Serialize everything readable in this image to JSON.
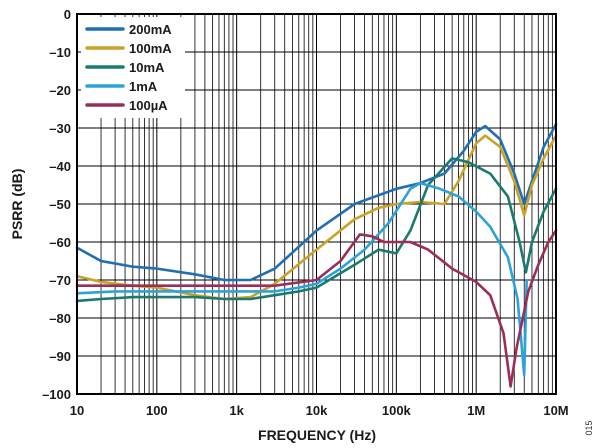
{
  "chart_data": {
    "type": "line",
    "xlabel": "FREQUENCY (Hz)",
    "ylabel": "PSRR (dB)",
    "xscale": "log",
    "xlim": [
      10,
      10000000
    ],
    "ylim": [
      -100,
      0
    ],
    "xticks": [
      10,
      100,
      1000,
      10000,
      100000,
      1000000,
      10000000
    ],
    "xtick_labels": [
      "10",
      "100",
      "1k",
      "10k",
      "100k",
      "1M",
      "10M"
    ],
    "yticks": [
      0,
      -10,
      -20,
      -30,
      -40,
      -50,
      -60,
      -70,
      -80,
      -90,
      -100
    ],
    "ytick_labels": [
      "0",
      "–10",
      "–20",
      "–30",
      "–40",
      "–50",
      "–60",
      "–70",
      "–80",
      "–90",
      "–100"
    ],
    "grid": true,
    "legend_position": "top-left",
    "side_code": "015",
    "series": [
      {
        "name": "200mA",
        "color": "#1f6fb2",
        "points": [
          [
            10,
            -61.5
          ],
          [
            20,
            -65
          ],
          [
            50,
            -66.5
          ],
          [
            100,
            -67
          ],
          [
            300,
            -68.5
          ],
          [
            700,
            -70
          ],
          [
            1500,
            -70
          ],
          [
            3000,
            -67
          ],
          [
            10000,
            -57
          ],
          [
            30000,
            -50
          ],
          [
            100000,
            -46
          ],
          [
            200000,
            -44.5
          ],
          [
            400000,
            -42
          ],
          [
            700000,
            -36
          ],
          [
            1000000,
            -31
          ],
          [
            1300000,
            -29.5
          ],
          [
            2000000,
            -33
          ],
          [
            3000000,
            -42
          ],
          [
            4000000,
            -50
          ],
          [
            5000000,
            -44
          ],
          [
            7000000,
            -35
          ],
          [
            10000000,
            -29
          ]
        ]
      },
      {
        "name": "100mA",
        "color": "#c9a227",
        "points": [
          [
            10,
            -69
          ],
          [
            20,
            -70.5
          ],
          [
            50,
            -71.5
          ],
          [
            100,
            -72
          ],
          [
            300,
            -74
          ],
          [
            700,
            -75
          ],
          [
            1500,
            -74.5
          ],
          [
            3000,
            -71
          ],
          [
            10000,
            -62
          ],
          [
            30000,
            -54
          ],
          [
            60000,
            -51
          ],
          [
            100000,
            -50
          ],
          [
            200000,
            -49.5
          ],
          [
            400000,
            -50
          ],
          [
            600000,
            -44
          ],
          [
            1000000,
            -34
          ],
          [
            1300000,
            -32
          ],
          [
            2000000,
            -35
          ],
          [
            3000000,
            -44
          ],
          [
            4000000,
            -53
          ],
          [
            5000000,
            -45
          ],
          [
            7000000,
            -38
          ],
          [
            10000000,
            -32
          ]
        ]
      },
      {
        "name": "10mA",
        "color": "#1b7a6e",
        "points": [
          [
            10,
            -75.5
          ],
          [
            20,
            -75
          ],
          [
            50,
            -74.5
          ],
          [
            100,
            -74.5
          ],
          [
            300,
            -74.5
          ],
          [
            700,
            -75
          ],
          [
            1500,
            -75
          ],
          [
            3000,
            -74
          ],
          [
            6000,
            -73
          ],
          [
            10000,
            -72
          ],
          [
            30000,
            -66
          ],
          [
            60000,
            -62
          ],
          [
            100000,
            -63
          ],
          [
            150000,
            -57
          ],
          [
            250000,
            -45
          ],
          [
            500000,
            -38
          ],
          [
            800000,
            -39
          ],
          [
            1500000,
            -42
          ],
          [
            2500000,
            -48
          ],
          [
            3500000,
            -60
          ],
          [
            4200000,
            -68
          ],
          [
            5000000,
            -60
          ],
          [
            7000000,
            -52
          ],
          [
            10000000,
            -46
          ]
        ]
      },
      {
        "name": "1mA",
        "color": "#2ba3d9",
        "points": [
          [
            10,
            -73.5
          ],
          [
            30,
            -73
          ],
          [
            100,
            -73
          ],
          [
            300,
            -73
          ],
          [
            1000,
            -73
          ],
          [
            3000,
            -73
          ],
          [
            6000,
            -72
          ],
          [
            10000,
            -71
          ],
          [
            20000,
            -67
          ],
          [
            40000,
            -62
          ],
          [
            80000,
            -55
          ],
          [
            150000,
            -46
          ],
          [
            200000,
            -44.5
          ],
          [
            350000,
            -46
          ],
          [
            600000,
            -48
          ],
          [
            1000000,
            -52
          ],
          [
            1500000,
            -56
          ],
          [
            2500000,
            -64
          ],
          [
            3300000,
            -75
          ],
          [
            4000000,
            -95
          ],
          [
            4300000,
            -70
          ]
        ]
      },
      {
        "name": "100µA",
        "color": "#9b2d5a",
        "points": [
          [
            10,
            -71.5
          ],
          [
            30,
            -71.5
          ],
          [
            100,
            -71.5
          ],
          [
            300,
            -71.5
          ],
          [
            1000,
            -71.5
          ],
          [
            3000,
            -71.5
          ],
          [
            10000,
            -70
          ],
          [
            20000,
            -65
          ],
          [
            35000,
            -58
          ],
          [
            50000,
            -58.5
          ],
          [
            70000,
            -60
          ],
          [
            150000,
            -60
          ],
          [
            250000,
            -62
          ],
          [
            500000,
            -67
          ],
          [
            1000000,
            -70.5
          ],
          [
            1500000,
            -74
          ],
          [
            2200000,
            -84
          ],
          [
            2700000,
            -98
          ],
          [
            3200000,
            -88
          ],
          [
            4500000,
            -73
          ],
          [
            6000000,
            -66
          ],
          [
            8000000,
            -60
          ],
          [
            10000000,
            -57
          ]
        ]
      }
    ]
  }
}
